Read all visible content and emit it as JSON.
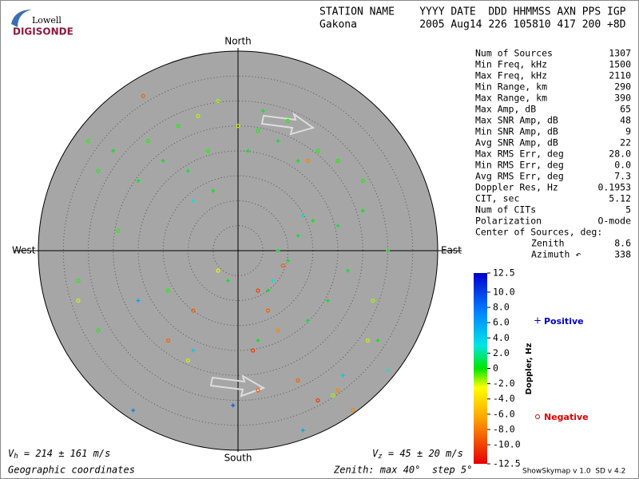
{
  "logo": {
    "top": "Lowell",
    "bottom": "DIGISONDE"
  },
  "header": {
    "line1": "STATION NAME    YYYY DATE  DDD HHMMSS AXN PPS IGP",
    "line2": "Gakona          2005 Aug14 226 105810 417 200 +8D"
  },
  "stats": {
    "rows": [
      [
        "Num of Sources",
        "1307"
      ],
      [
        "Min Freq, kHz",
        "1500"
      ],
      [
        "Max Freq, kHz",
        "2110"
      ],
      [
        "Min Range, km",
        "290"
      ],
      [
        "Max Range, km",
        "390"
      ],
      [
        "Max Amp, dB",
        "65"
      ],
      [
        "Max SNR Amp, dB",
        "48"
      ],
      [
        "Min SNR Amp, dB",
        "9"
      ],
      [
        "Avg SNR Amp, dB",
        "22"
      ],
      [
        "Max RMS Err, deg",
        "28.0"
      ],
      [
        "Min RMS Err, deg",
        "0.0"
      ],
      [
        "Avg RMS Err, deg",
        "7.3"
      ],
      [
        "Doppler Res, Hz",
        "0.1953"
      ],
      [
        "CIT, sec",
        "5.12"
      ],
      [
        "Num of CITs",
        "5"
      ],
      [
        "Polarization",
        "O-mode"
      ]
    ],
    "center_heading": "Center of Sources, deg:",
    "center_rows": [
      [
        "Zenith",
        "8.6"
      ],
      [
        "Azimuth ↶",
        "338"
      ]
    ]
  },
  "footer": {
    "vh_symbol": "V",
    "vh_sub": "h",
    "vh_value": " = 214 ± 161 m/s",
    "vz_symbol": "V",
    "vz_sub": "z",
    "vz_value": " = 45 ± 20 m/s",
    "coords": "Geographic coordinates",
    "zenith": "Zenith: max 40°  step 5°",
    "version": "ShowSkymap v 1.0  SD v 4.2"
  },
  "chart_data": {
    "type": "scatter",
    "directions": {
      "north": "North",
      "south": "South",
      "east": "East",
      "west": "West"
    },
    "zenith_max": 40,
    "zenith_step": 5,
    "colorbar": {
      "label": "Doppler, Hz",
      "lim": [
        -12.5,
        12.5
      ],
      "ticks": [
        12.5,
        {
          "value": 10,
          "label": "10.0"
        },
        {
          "value": 8,
          "label": "8.0"
        },
        {
          "value": 6,
          "label": "6.0"
        },
        {
          "value": 4,
          "label": "4.0"
        },
        {
          "value": 2,
          "label": "2.0"
        },
        0,
        {
          "value": -2,
          "label": "-2.0"
        },
        {
          "value": -4,
          "label": "-4.0"
        },
        {
          "value": -6,
          "label": "-6.0"
        },
        {
          "value": -8,
          "label": "-8.0"
        },
        {
          "value": -10,
          "label": "-10.0"
        },
        -12.5
      ]
    },
    "series": [
      {
        "name": "Positive",
        "color": "#0000c8",
        "marker": "plus",
        "x": [
          8,
          10,
          12,
          15,
          20,
          25,
          22,
          18,
          14,
          6,
          4,
          -2,
          -5,
          -10,
          -15,
          2,
          8,
          12,
          -20,
          28,
          30,
          -25,
          5,
          -20,
          -9,
          -21,
          -1,
          13,
          21,
          30,
          -9,
          13,
          7
        ],
        "y": [
          0,
          -2,
          3,
          6,
          5,
          8,
          -4,
          -10,
          -14,
          -8,
          -18,
          -6,
          12,
          16,
          18,
          20,
          22,
          18,
          14,
          -18,
          0,
          20,
          28,
          -10,
          -20,
          -32,
          -31,
          -36,
          -25,
          -24,
          10,
          7,
          -6
        ],
        "values": [
          1,
          0.5,
          1,
          0.8,
          1.2,
          0.6,
          1,
          0.7,
          0.9,
          1.1,
          0.5,
          0.8,
          0.6,
          1,
          0.7,
          0.9,
          1.1,
          0.6,
          0.8,
          1,
          0.7,
          0.5,
          1,
          8,
          7,
          9,
          10,
          8,
          7,
          6,
          6,
          5,
          6
        ]
      },
      {
        "name": "Negative",
        "color": "#e00000",
        "marker": "circle",
        "x": [
          -18,
          -12,
          -6,
          4,
          10,
          16,
          -28,
          -30,
          20,
          25,
          -24,
          -32,
          -28,
          -14,
          -4,
          0,
          -8,
          27,
          26,
          -32,
          19,
          -10,
          -4,
          -19,
          14,
          4,
          6,
          8,
          3,
          12,
          16,
          20,
          -14,
          9,
          23,
          -9,
          4
        ],
        "y": [
          22,
          25,
          20,
          24,
          26,
          20,
          16,
          22,
          18,
          14,
          4,
          -6,
          -16,
          -8,
          30,
          25,
          27,
          -10,
          -18,
          -10,
          -29,
          -22,
          -4,
          31,
          18,
          -8,
          -12,
          -16,
          -20,
          -26,
          -30,
          -28,
          -18,
          -3,
          -32,
          -12,
          -28
        ],
        "values": [
          -0.5,
          -0.6,
          -0.8,
          -0.4,
          -0.7,
          -0.5,
          -0.6,
          -0.9,
          -0.5,
          -0.7,
          -0.8,
          -0.6,
          -0.5,
          -0.7,
          -4,
          -5,
          -4.5,
          -4,
          -5,
          -5,
          -4,
          -5,
          -6,
          -10,
          -9,
          -11,
          -10,
          -9,
          -11,
          -10,
          -11,
          -9,
          -10,
          -10,
          -9,
          -10,
          -10
        ]
      }
    ]
  }
}
